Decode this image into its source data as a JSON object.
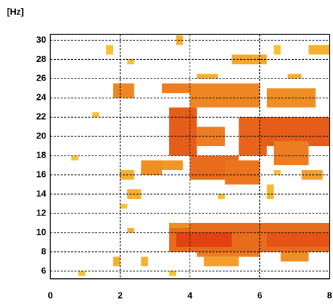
{
  "chart_data": {
    "type": "heatmap",
    "y_label": "[Hz]",
    "xlim": [
      0,
      8
    ],
    "ylim": [
      5.2,
      30.6
    ],
    "xticks": [
      0,
      2,
      4,
      6,
      8
    ],
    "yticks": [
      6,
      8,
      10,
      12,
      14,
      16,
      18,
      20,
      22,
      24,
      26,
      28,
      30
    ],
    "grid": true,
    "colors": [
      "#ffe23c",
      "#e03a10"
    ],
    "cells": [
      [
        3.4,
        8,
        8,
        11,
        0.7
      ],
      [
        3.6,
        5.2,
        8.5,
        10,
        0.95
      ],
      [
        6.2,
        8,
        8.5,
        10,
        0.85
      ],
      [
        3.4,
        4,
        10.5,
        11,
        0.5
      ],
      [
        4.2,
        6,
        7.5,
        8,
        0.6
      ],
      [
        4.4,
        5.4,
        6.5,
        7.5,
        0.4
      ],
      [
        6.6,
        7.4,
        7,
        8,
        0.5
      ],
      [
        3.4,
        4.2,
        18,
        23,
        0.8
      ],
      [
        4.2,
        5.0,
        19,
        21,
        0.6
      ],
      [
        4.0,
        5.4,
        15.5,
        18,
        0.7
      ],
      [
        5.0,
        6.0,
        15,
        17.5,
        0.65
      ],
      [
        5.4,
        6.2,
        18,
        22,
        0.75
      ],
      [
        6.0,
        8,
        19,
        22,
        0.8
      ],
      [
        6.4,
        7.4,
        17,
        19.5,
        0.6
      ],
      [
        4,
        6,
        23,
        25.5,
        0.55
      ],
      [
        6.2,
        7.6,
        23,
        25,
        0.5
      ],
      [
        3.2,
        3.8,
        16.5,
        17.5,
        0.45
      ],
      [
        2.6,
        3.2,
        16,
        17.5,
        0.5
      ],
      [
        7.2,
        7.8,
        15.5,
        16.5,
        0.4
      ],
      [
        3.2,
        4,
        24.5,
        25.5,
        0.6
      ],
      [
        1.8,
        2.4,
        24,
        25.5,
        0.55
      ],
      [
        4.2,
        4.8,
        26,
        26.5,
        0.3
      ],
      [
        6.8,
        7.2,
        26,
        26.5,
        0.3
      ],
      [
        5.2,
        6.2,
        27.5,
        28.5,
        0.35
      ],
      [
        7.4,
        8,
        28.5,
        29.5,
        0.3
      ],
      [
        1.6,
        1.8,
        28.5,
        29.5,
        0.2
      ],
      [
        3.6,
        3.8,
        29.5,
        30.5,
        0.3
      ],
      [
        2.2,
        2.4,
        27.5,
        28,
        0.2
      ],
      [
        0.6,
        0.8,
        17.5,
        18,
        0.2
      ],
      [
        1.2,
        1.4,
        22,
        22.5,
        0.2
      ],
      [
        2,
        2.4,
        15.5,
        16.5,
        0.3
      ],
      [
        2.2,
        2.6,
        13.5,
        14.5,
        0.3
      ],
      [
        2,
        2.2,
        12.5,
        13,
        0.2
      ],
      [
        2.2,
        2.4,
        10,
        10.5,
        0.3
      ],
      [
        1.8,
        2.0,
        6.5,
        7.5,
        0.3
      ],
      [
        2.6,
        2.8,
        6.5,
        7.5,
        0.3
      ],
      [
        0.8,
        1.0,
        5.5,
        6,
        0.2
      ],
      [
        3.4,
        3.6,
        5.5,
        6,
        0.2
      ],
      [
        6.2,
        6.4,
        13.5,
        15,
        0.25
      ],
      [
        4.8,
        5.0,
        13.5,
        14,
        0.2
      ],
      [
        6.4,
        6.6,
        28.5,
        29.5,
        0.2
      ],
      [
        6.4,
        6.6,
        16,
        16.5,
        0.2
      ]
    ]
  }
}
